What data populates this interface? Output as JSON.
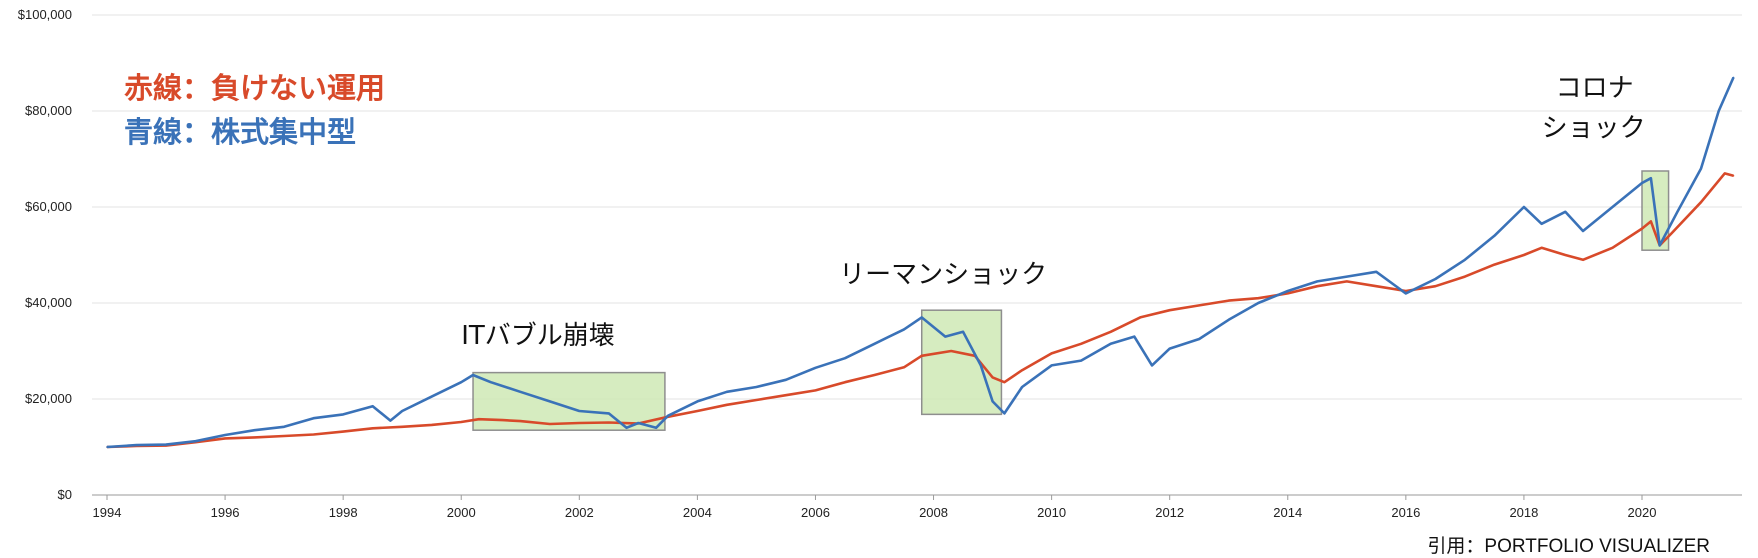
{
  "chart_data": {
    "type": "line",
    "title": "",
    "xlabel": "",
    "ylabel": "",
    "xlim": [
      1994,
      2021.6
    ],
    "ylim": [
      0,
      100000
    ],
    "grid": true,
    "x_ticks": [
      "1994",
      "1996",
      "1998",
      "2000",
      "2002",
      "2004",
      "2006",
      "2008",
      "2010",
      "2012",
      "2014",
      "2016",
      "2018",
      "2020"
    ],
    "x_tick_values": [
      1994,
      1996,
      1998,
      2000,
      2002,
      2004,
      2006,
      2008,
      2010,
      2012,
      2014,
      2016,
      2018,
      2020
    ],
    "y_ticks": [
      "$0",
      "$20,000",
      "$40,000",
      "$60,000",
      "$80,000",
      "$100,000"
    ],
    "y_tick_values": [
      0,
      20000,
      40000,
      60000,
      80000,
      100000
    ],
    "legend_lines": [
      {
        "text": "赤線：負けない運用",
        "color": "#d84a2a"
      },
      {
        "text": "青線：株式集中型",
        "color": "#3a72b8"
      }
    ],
    "series": [
      {
        "color": "#d84a2a",
        "points": [
          [
            1994.0,
            10000
          ],
          [
            1994.5,
            10200
          ],
          [
            1995.0,
            10300
          ],
          [
            1995.5,
            11000
          ],
          [
            1996.0,
            11800
          ],
          [
            1996.5,
            12000
          ],
          [
            1997.0,
            12300
          ],
          [
            1997.5,
            12600
          ],
          [
            1998.0,
            13200
          ],
          [
            1998.5,
            13900
          ],
          [
            1999.0,
            14200
          ],
          [
            1999.5,
            14600
          ],
          [
            2000.0,
            15200
          ],
          [
            2000.3,
            15800
          ],
          [
            2000.7,
            15600
          ],
          [
            2001.0,
            15400
          ],
          [
            2001.5,
            14800
          ],
          [
            2002.0,
            15000
          ],
          [
            2002.5,
            15100
          ],
          [
            2003.0,
            14900
          ],
          [
            2003.5,
            16300
          ],
          [
            2004.0,
            17500
          ],
          [
            2004.5,
            18800
          ],
          [
            2005.0,
            19800
          ],
          [
            2005.5,
            20800
          ],
          [
            2006.0,
            21800
          ],
          [
            2006.5,
            23500
          ],
          [
            2007.0,
            25000
          ],
          [
            2007.5,
            26600
          ],
          [
            2007.8,
            29000
          ],
          [
            2008.3,
            30000
          ],
          [
            2008.7,
            29000
          ],
          [
            2009.0,
            24500
          ],
          [
            2009.2,
            23500
          ],
          [
            2009.5,
            26000
          ],
          [
            2010.0,
            29500
          ],
          [
            2010.5,
            31500
          ],
          [
            2011.0,
            34000
          ],
          [
            2011.5,
            37000
          ],
          [
            2012.0,
            38500
          ],
          [
            2012.5,
            39500
          ],
          [
            2013.0,
            40500
          ],
          [
            2013.5,
            41000
          ],
          [
            2014.0,
            42000
          ],
          [
            2014.5,
            43500
          ],
          [
            2015.0,
            44500
          ],
          [
            2015.5,
            43500
          ],
          [
            2016.0,
            42500
          ],
          [
            2016.5,
            43500
          ],
          [
            2017.0,
            45500
          ],
          [
            2017.5,
            48000
          ],
          [
            2018.0,
            50000
          ],
          [
            2018.3,
            51500
          ],
          [
            2018.7,
            50000
          ],
          [
            2019.0,
            49000
          ],
          [
            2019.5,
            51500
          ],
          [
            2020.0,
            55500
          ],
          [
            2020.15,
            57000
          ],
          [
            2020.3,
            52000
          ],
          [
            2020.5,
            54500
          ],
          [
            2021.0,
            61000
          ],
          [
            2021.4,
            67000
          ],
          [
            2021.55,
            66500
          ]
        ]
      },
      {
        "color": "#3a72b8",
        "points": [
          [
            1994.0,
            10000
          ],
          [
            1994.5,
            10400
          ],
          [
            1995.0,
            10500
          ],
          [
            1995.5,
            11200
          ],
          [
            1996.0,
            12500
          ],
          [
            1996.5,
            13500
          ],
          [
            1997.0,
            14200
          ],
          [
            1997.5,
            16000
          ],
          [
            1998.0,
            16800
          ],
          [
            1998.5,
            18500
          ],
          [
            1998.8,
            15500
          ],
          [
            1999.0,
            17500
          ],
          [
            1999.5,
            20500
          ],
          [
            2000.0,
            23500
          ],
          [
            2000.2,
            25000
          ],
          [
            2000.5,
            23500
          ],
          [
            2001.0,
            21500
          ],
          [
            2001.5,
            19500
          ],
          [
            2002.0,
            17500
          ],
          [
            2002.5,
            17000
          ],
          [
            2002.8,
            14000
          ],
          [
            2003.0,
            15000
          ],
          [
            2003.3,
            14000
          ],
          [
            2003.5,
            16500
          ],
          [
            2004.0,
            19500
          ],
          [
            2004.5,
            21500
          ],
          [
            2005.0,
            22500
          ],
          [
            2005.5,
            24000
          ],
          [
            2006.0,
            26500
          ],
          [
            2006.5,
            28500
          ],
          [
            2007.0,
            31500
          ],
          [
            2007.5,
            34500
          ],
          [
            2007.8,
            37000
          ],
          [
            2008.2,
            33000
          ],
          [
            2008.5,
            34000
          ],
          [
            2008.8,
            27000
          ],
          [
            2009.0,
            19500
          ],
          [
            2009.2,
            17000
          ],
          [
            2009.5,
            22500
          ],
          [
            2010.0,
            27000
          ],
          [
            2010.5,
            28000
          ],
          [
            2011.0,
            31500
          ],
          [
            2011.4,
            33000
          ],
          [
            2011.7,
            27000
          ],
          [
            2012.0,
            30500
          ],
          [
            2012.5,
            32500
          ],
          [
            2013.0,
            36500
          ],
          [
            2013.5,
            40000
          ],
          [
            2014.0,
            42500
          ],
          [
            2014.5,
            44500
          ],
          [
            2015.0,
            45500
          ],
          [
            2015.5,
            46500
          ],
          [
            2016.0,
            42000
          ],
          [
            2016.5,
            45000
          ],
          [
            2017.0,
            49000
          ],
          [
            2017.5,
            54000
          ],
          [
            2018.0,
            60000
          ],
          [
            2018.3,
            56500
          ],
          [
            2018.7,
            59000
          ],
          [
            2019.0,
            55000
          ],
          [
            2019.5,
            60000
          ],
          [
            2020.0,
            65000
          ],
          [
            2020.15,
            66000
          ],
          [
            2020.3,
            52000
          ],
          [
            2020.6,
            59000
          ],
          [
            2021.0,
            68000
          ],
          [
            2021.3,
            80000
          ],
          [
            2021.55,
            87000
          ]
        ]
      }
    ],
    "highlights": [
      {
        "x0": 2000.2,
        "x1": 2003.45,
        "y0": 13500,
        "y1": 25500,
        "label": "ITバブル崩壊",
        "label_x": 2000.0,
        "label_y": 31500
      },
      {
        "x0": 2007.8,
        "x1": 2009.15,
        "y0": 16800,
        "y1": 38500,
        "label": "リーマンショック",
        "label_x": 2006.4,
        "label_y": 44200
      },
      {
        "x0": 2020.0,
        "x1": 2020.45,
        "y0": 51000,
        "y1": 67500,
        "label": "コロナ\nショック",
        "label_x": 2018.3,
        "label_y": 83000
      }
    ],
    "highlight_fill": "#cfe9b5",
    "highlight_stroke": "#8e8e8e",
    "source": "引用：PORTFOLIO VISUALIZER"
  }
}
